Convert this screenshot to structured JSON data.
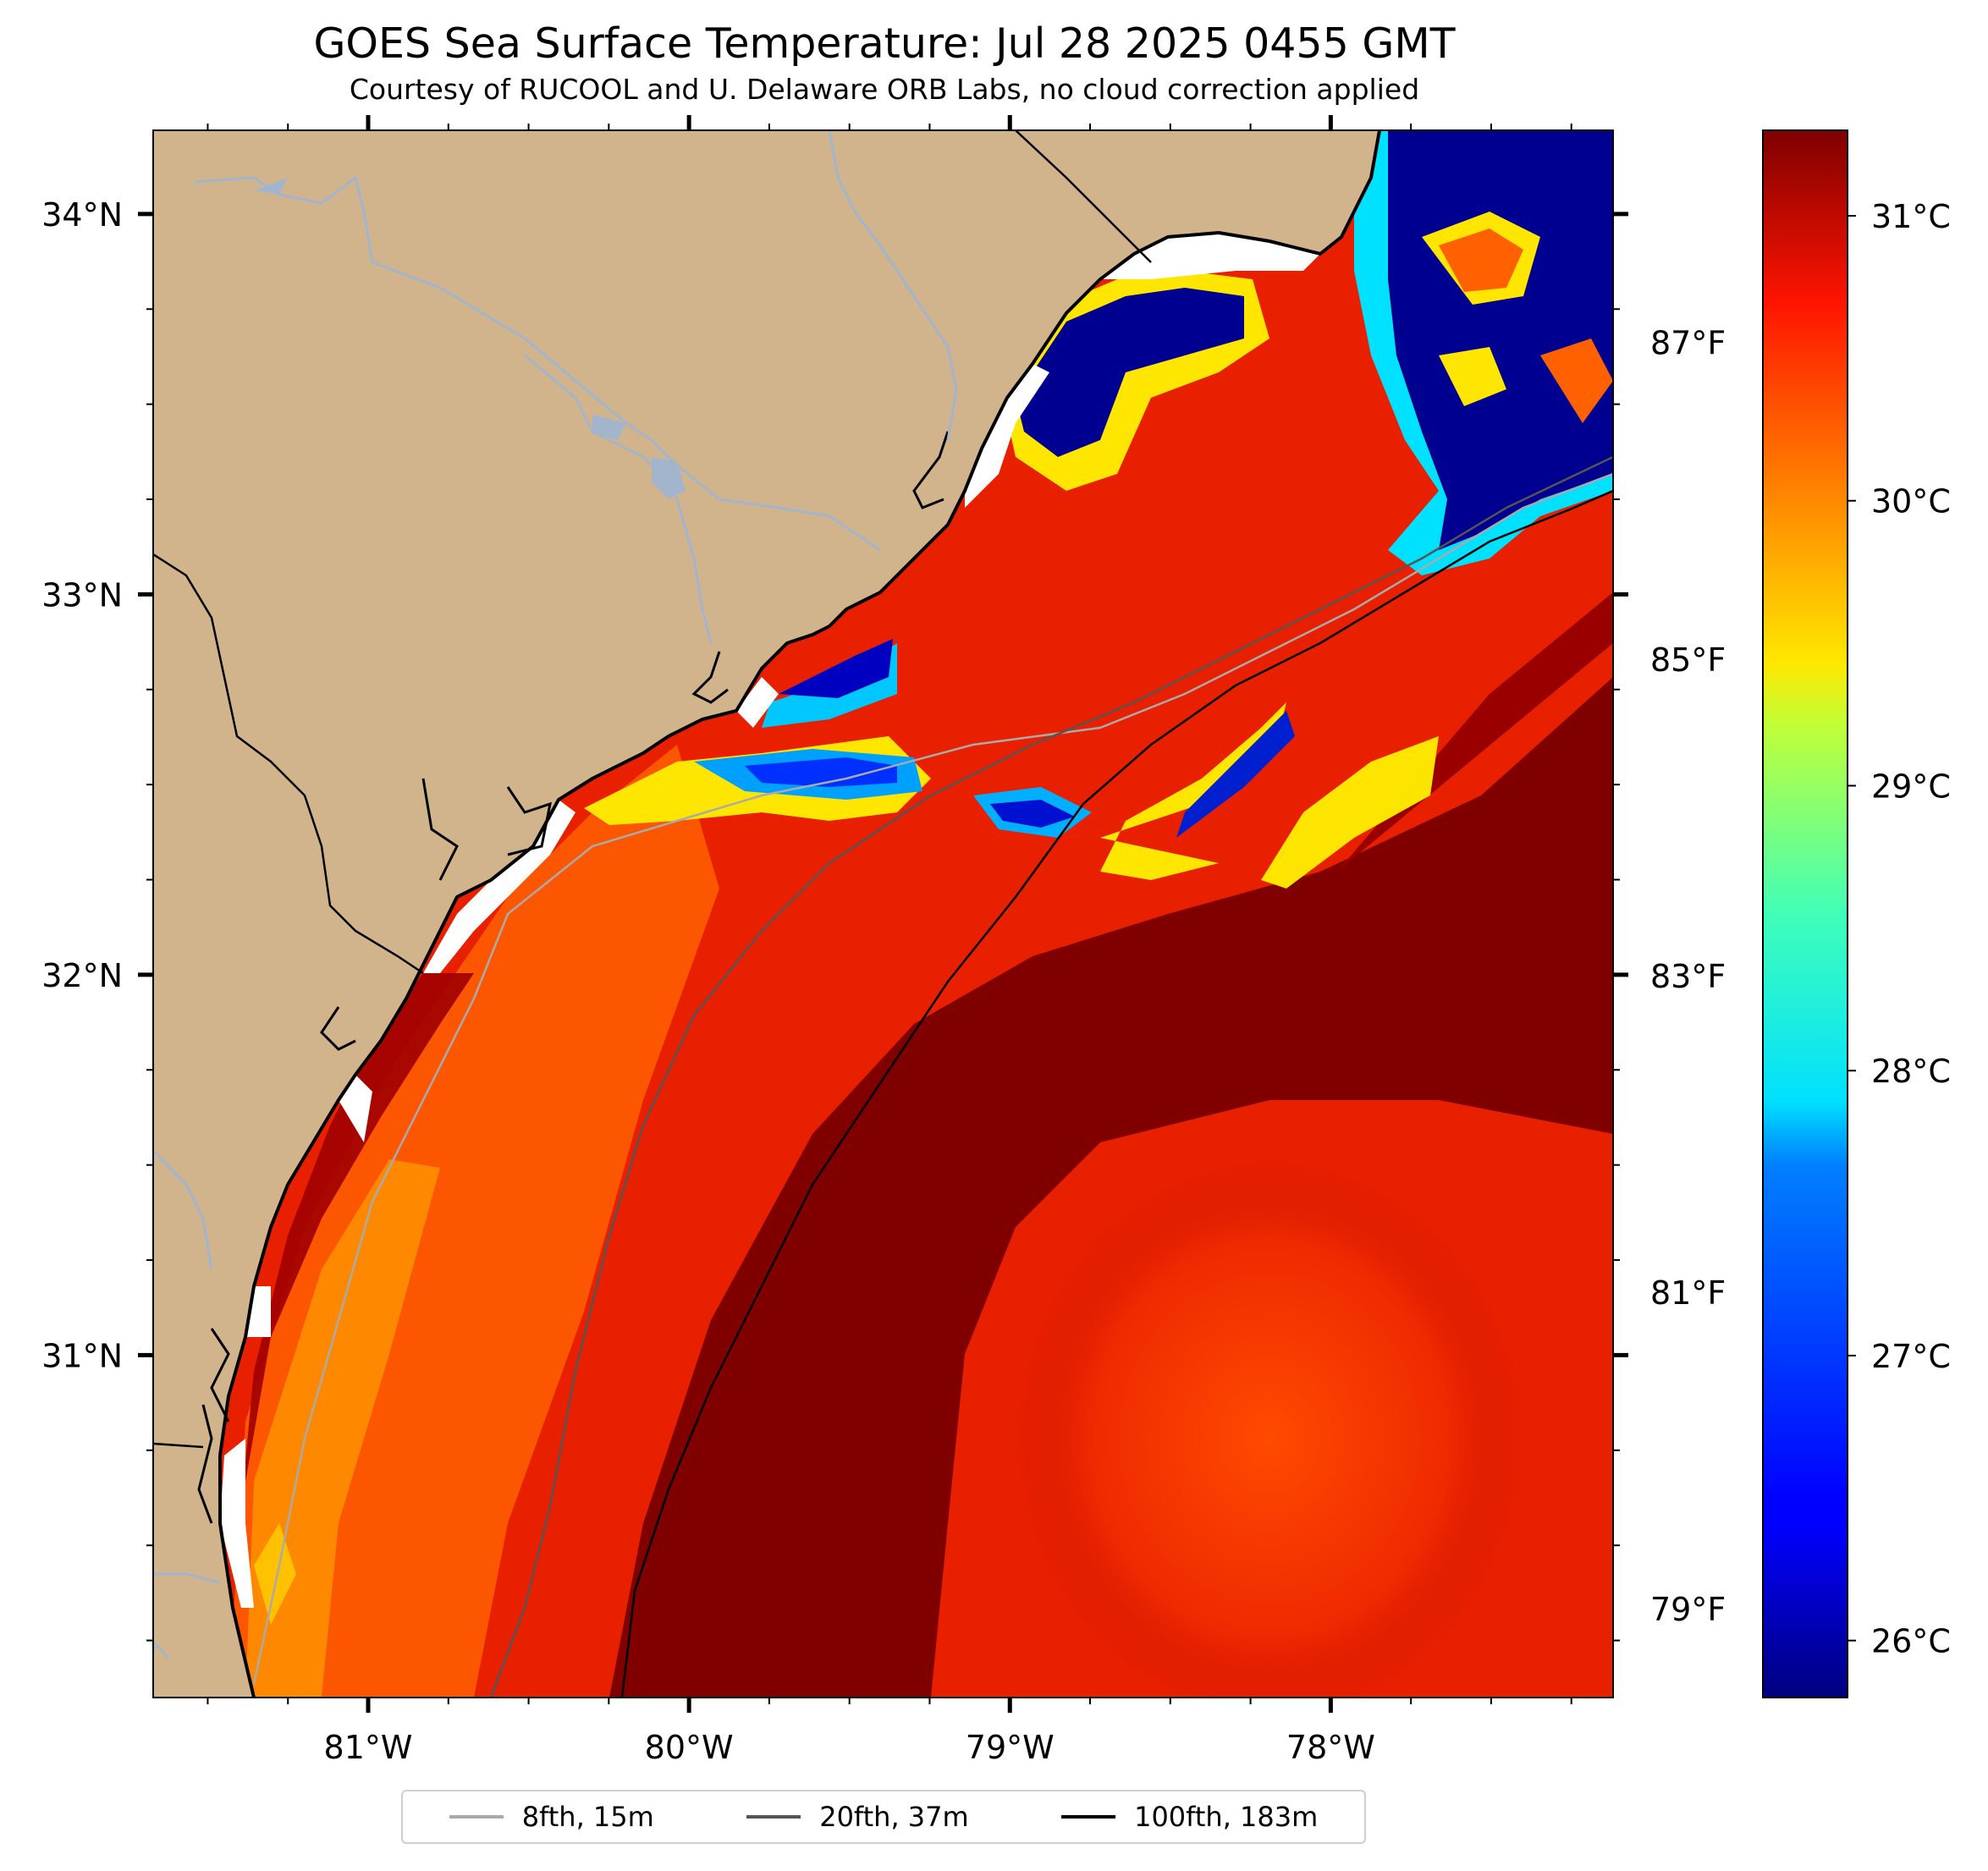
{
  "title": "GOES Sea Surface Temperature: Jul 28 2025 0455 GMT",
  "subtitle": "Courtesy of RUCOOL and U. Delaware ORB Labs, no cloud correction applied",
  "map": {
    "extent": {
      "lon_min": -81.67,
      "lon_max": -77.12,
      "lat_min": 30.1,
      "lat_max": 34.22
    },
    "lat_ticks": [
      {
        "value": 34,
        "label": "34°N"
      },
      {
        "value": 33,
        "label": "33°N"
      },
      {
        "value": 32,
        "label": "32°N"
      },
      {
        "value": 31,
        "label": "31°N"
      }
    ],
    "lon_ticks": [
      {
        "value": -81,
        "label": "81°W"
      },
      {
        "value": -80,
        "label": "80°W"
      },
      {
        "value": -79,
        "label": "79°W"
      },
      {
        "value": -78,
        "label": "78°W"
      }
    ],
    "colors": {
      "land": "#d2b48c",
      "coast": "#000000",
      "river": "#a2b5cd",
      "hot": "#800000",
      "cold": "#000080"
    }
  },
  "colorbar": {
    "colormap": "jet",
    "range_c": [
      25.8,
      31.3
    ],
    "celsius_ticks": [
      {
        "value": 31,
        "label": "31°C"
      },
      {
        "value": 30,
        "label": "30°C"
      },
      {
        "value": 29,
        "label": "29°C"
      },
      {
        "value": 28,
        "label": "28°C"
      },
      {
        "value": 27,
        "label": "27°C"
      },
      {
        "value": 26,
        "label": "26°C"
      }
    ],
    "fahrenheit_ticks": [
      {
        "value": 87,
        "label": "87°F"
      },
      {
        "value": 85,
        "label": "85°F"
      },
      {
        "value": 83,
        "label": "83°F"
      },
      {
        "value": 81,
        "label": "81°F"
      },
      {
        "value": 79,
        "label": "79°F"
      }
    ]
  },
  "legend": [
    {
      "label": "8fth, 15m",
      "color": "#aaaaaa"
    },
    {
      "label": "20fth, 37m",
      "color": "#555555"
    },
    {
      "label": "100fth, 183m",
      "color": "#000000"
    }
  ]
}
